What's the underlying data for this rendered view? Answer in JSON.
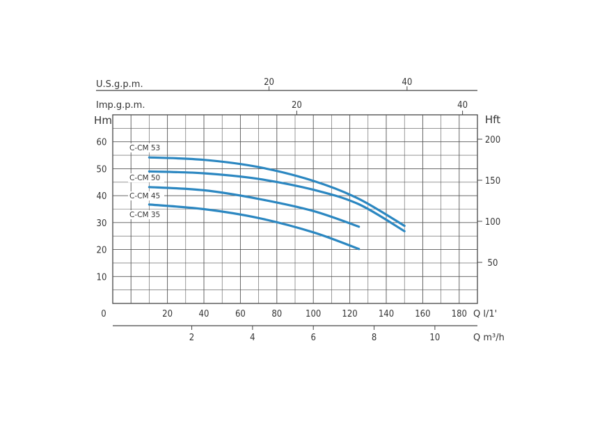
{
  "chart_data": {
    "type": "line",
    "axes": {
      "us_gpm": {
        "label": "U.S.g.p.m.",
        "ticks": [
          "20",
          "40"
        ]
      },
      "imp_gpm": {
        "label": "Imp.g.p.m.",
        "ticks": [
          "20",
          "40"
        ]
      },
      "h_m": {
        "label": "Hm",
        "ticks": [
          "10",
          "20",
          "30",
          "40",
          "50",
          "60"
        ],
        "range": [
          0,
          70
        ]
      },
      "h_ft": {
        "label": "Hft",
        "ticks": [
          "50",
          "100",
          "150",
          "200"
        ]
      },
      "q_lmin": {
        "label": "Q l/1'",
        "ticks": [
          "0",
          "20",
          "40",
          "60",
          "80",
          "100",
          "120",
          "140",
          "160",
          "180"
        ],
        "range": [
          -10,
          190
        ]
      },
      "q_m3h": {
        "label": "Q m³/h",
        "ticks": [
          "2",
          "4",
          "6",
          "8",
          "10"
        ]
      }
    },
    "series": [
      {
        "name": "C-CM 53",
        "x": [
          10,
          40,
          70,
          100,
          125,
          150
        ],
        "y": [
          54.2,
          53.3,
          50.6,
          45.5,
          38.8,
          28.8
        ]
      },
      {
        "name": "C-CM 50",
        "x": [
          10,
          40,
          70,
          100,
          125,
          150
        ],
        "y": [
          49.0,
          48.3,
          46.2,
          42.2,
          36.8,
          26.8
        ]
      },
      {
        "name": "C-CM 45",
        "x": [
          10,
          40,
          70,
          100,
          125
        ],
        "y": [
          43.2,
          42.0,
          38.8,
          34.3,
          28.5
        ]
      },
      {
        "name": "C-CM 35",
        "x": [
          10,
          40,
          70,
          100,
          125
        ],
        "y": [
          36.7,
          35.0,
          31.7,
          26.4,
          20.2
        ]
      }
    ],
    "colors": {
      "curve": "#2b87c1",
      "grid": "#555555"
    }
  }
}
